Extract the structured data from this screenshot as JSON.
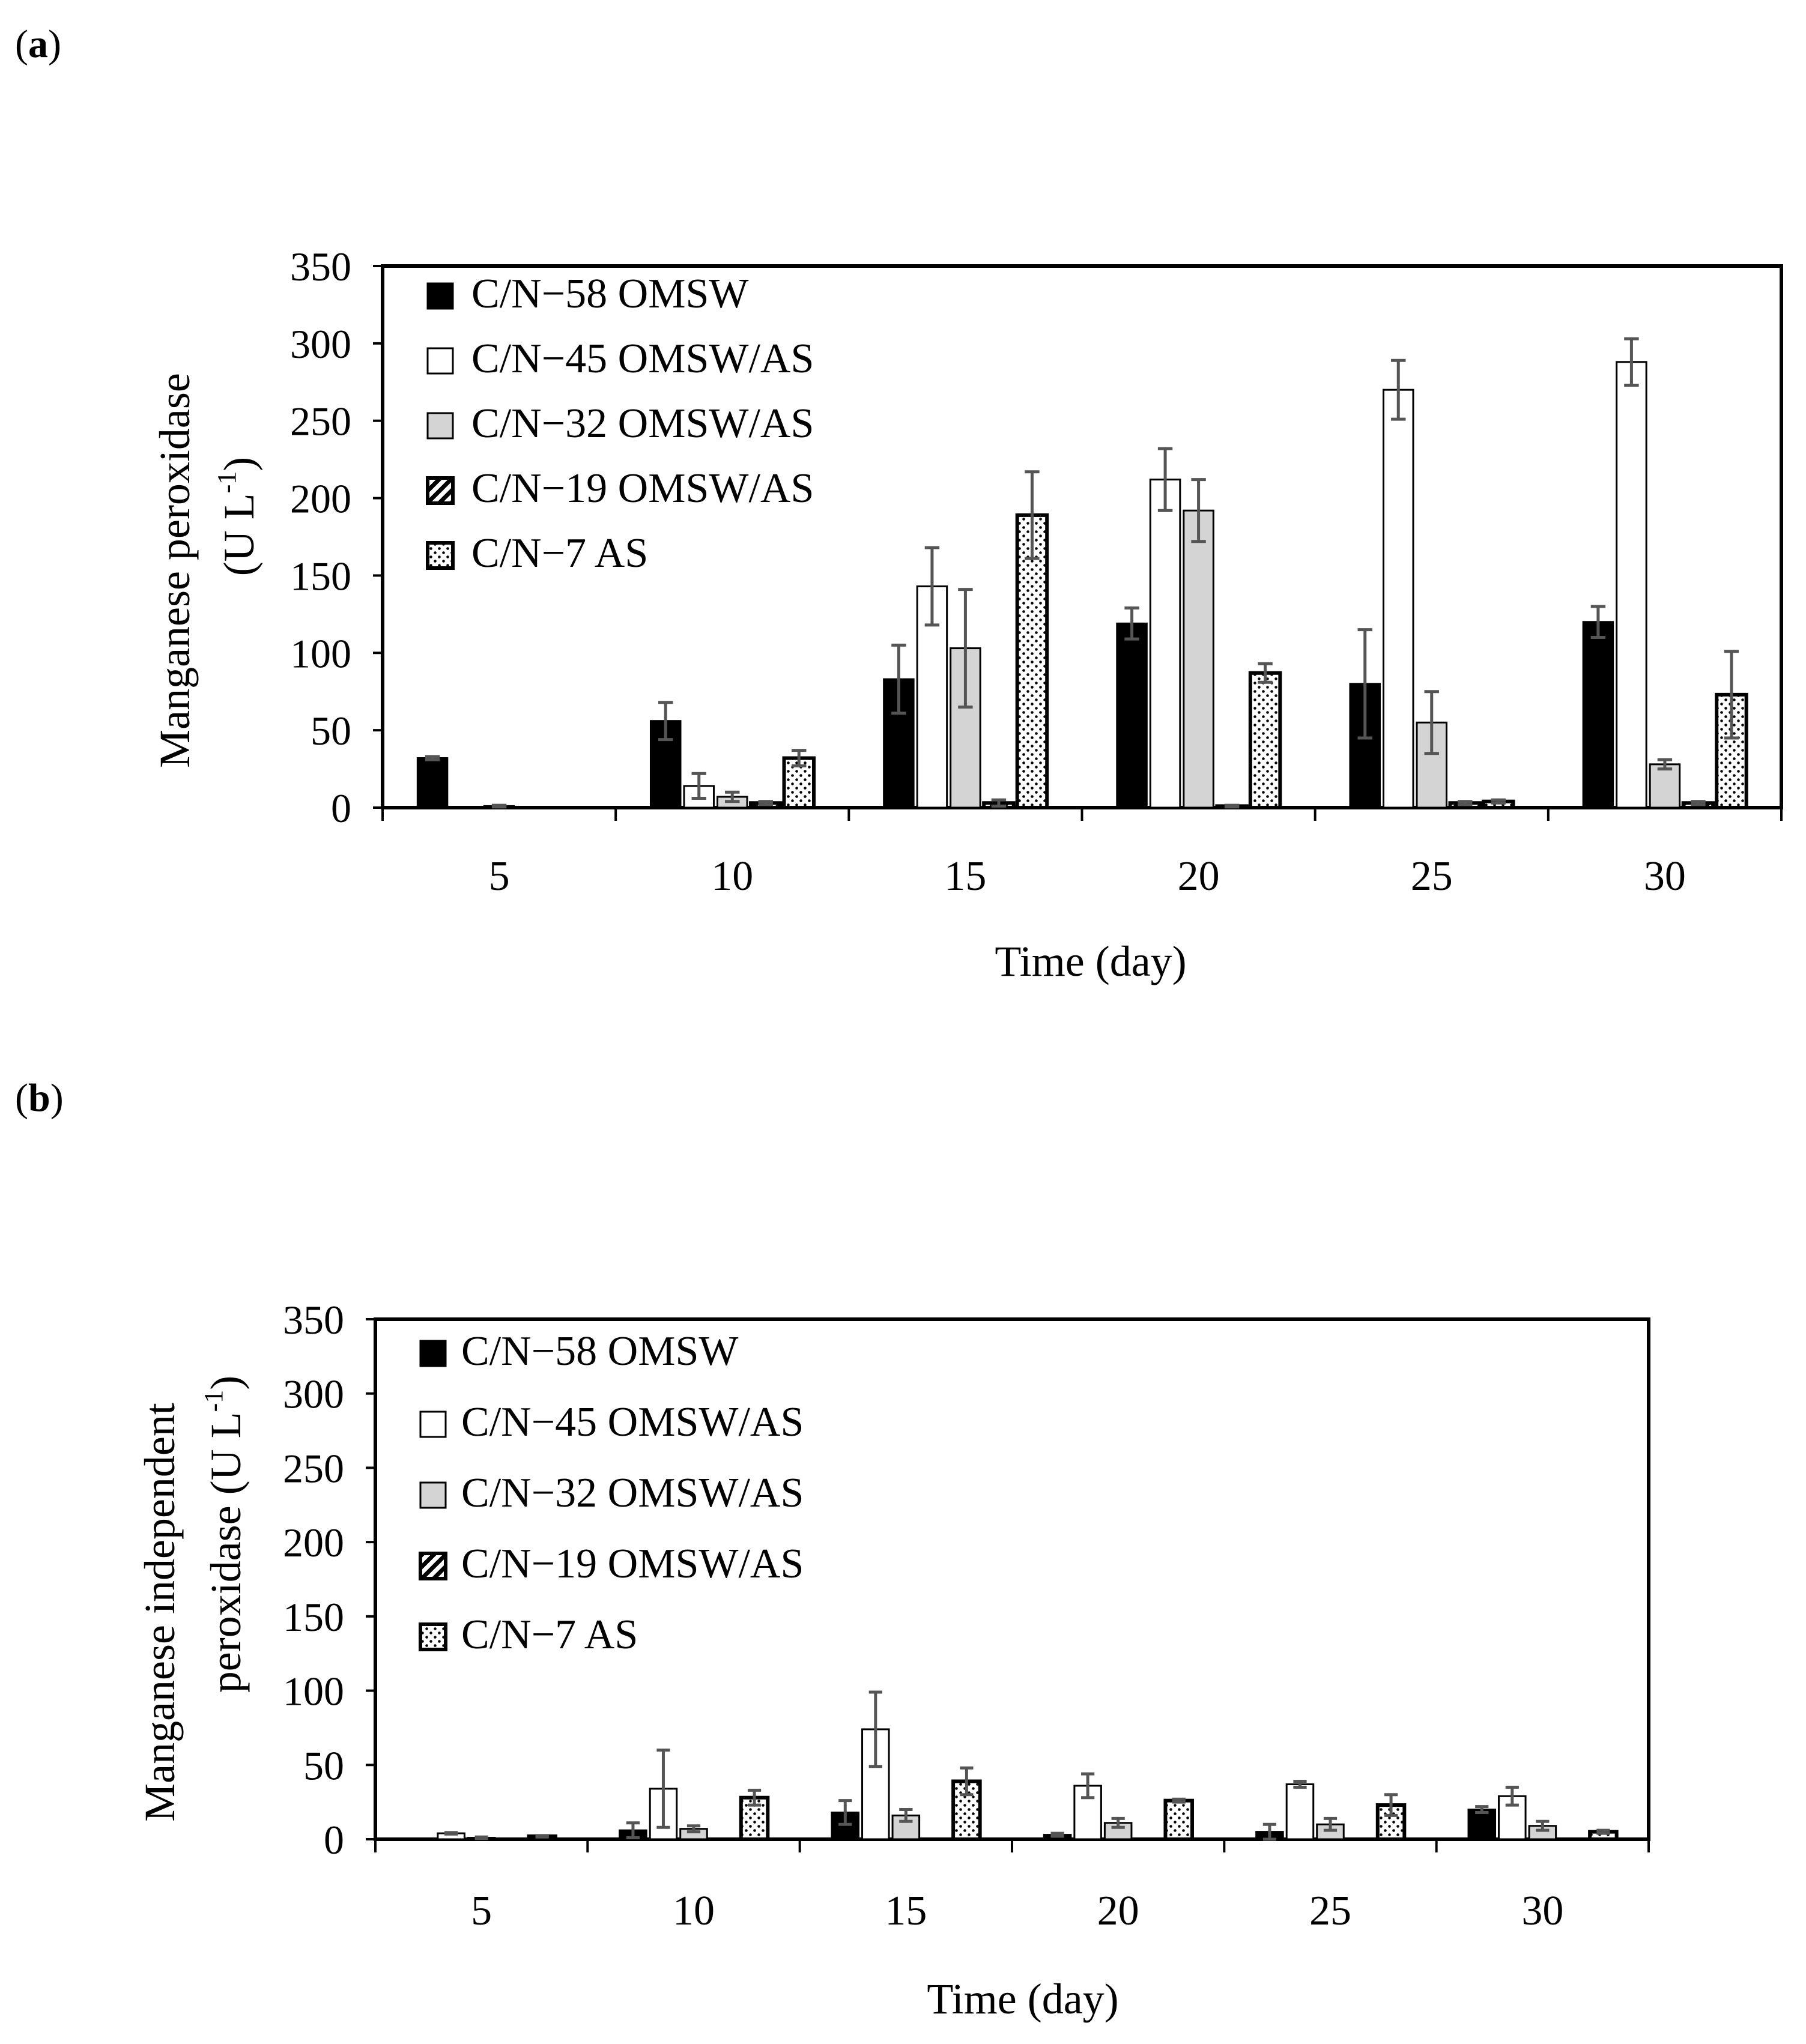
{
  "panels": [
    {
      "label_open": "(",
      "label_letter": "a",
      "label_close": ")",
      "ylabel_lines": [
        "Manganese peroxidase",
        "(U L",
        "-1",
        ")"
      ],
      "xlabel": "Time (day)"
    },
    {
      "label_open": "(",
      "label_letter": "b",
      "label_close": ")",
      "ylabel_lines": [
        "Manganese independent",
        "peroxidase (U L",
        "-1",
        ")"
      ],
      "xlabel": "Time (day)"
    }
  ],
  "chart_data": [
    {
      "type": "bar",
      "title": "",
      "xlabel": "Time (day)",
      "ylabel": "Manganese peroxidase (U L-1)",
      "ylim": [
        0,
        350
      ],
      "yticks": [
        0,
        50,
        100,
        150,
        200,
        250,
        300,
        350
      ],
      "categories": [
        "5",
        "10",
        "15",
        "20",
        "25",
        "30"
      ],
      "series": [
        {
          "name": "C/N−58 OMSW",
          "pattern": "black",
          "values": [
            32,
            56,
            83,
            119,
            80,
            120
          ],
          "errors": [
            1,
            12,
            22,
            10,
            35,
            10
          ]
        },
        {
          "name": "C/N−45 OMSW/AS",
          "pattern": "white",
          "values": [
            0,
            14,
            143,
            212,
            270,
            288
          ],
          "errors": [
            0,
            8,
            25,
            20,
            19,
            15
          ]
        },
        {
          "name": "C/N−32 OMSW/AS",
          "pattern": "gray",
          "values": [
            1,
            7,
            103,
            192,
            55,
            28
          ],
          "errors": [
            0.5,
            3,
            38,
            20,
            20,
            3
          ]
        },
        {
          "name": "C/N−19 OMSW/AS",
          "pattern": "hatch",
          "values": [
            0,
            3,
            3,
            1,
            3,
            3
          ],
          "errors": [
            0,
            1,
            2,
            0.5,
            1,
            1
          ]
        },
        {
          "name": "C/N−7 AS",
          "pattern": "dots",
          "values": [
            0,
            32,
            189,
            87,
            4,
            73
          ],
          "errors": [
            0,
            5,
            28,
            6,
            1,
            28
          ]
        }
      ],
      "legend": "top-left"
    },
    {
      "type": "bar",
      "title": "",
      "xlabel": "Time (day)",
      "ylabel": "Manganese independent peroxidase (U L-1)",
      "ylim": [
        0,
        350
      ],
      "yticks": [
        0,
        50,
        100,
        150,
        200,
        250,
        300,
        350
      ],
      "categories": [
        "5",
        "10",
        "15",
        "20",
        "25",
        "30"
      ],
      "series": [
        {
          "name": "C/N−58 OMSW",
          "pattern": "black",
          "values": [
            0,
            6,
            18,
            3,
            5,
            20
          ],
          "errors": [
            0,
            5,
            8,
            1,
            5,
            2
          ]
        },
        {
          "name": "C/N−45 OMSW/AS",
          "pattern": "white",
          "values": [
            4,
            34,
            74,
            36,
            37,
            29
          ],
          "errors": [
            0.5,
            26,
            25,
            8,
            2,
            6
          ]
        },
        {
          "name": "C/N−32 OMSW/AS",
          "pattern": "gray",
          "values": [
            1,
            7,
            16,
            11,
            10,
            9
          ],
          "errors": [
            0.5,
            2,
            4,
            3,
            4,
            3
          ]
        },
        {
          "name": "C/N−19 OMSW/AS",
          "pattern": "hatch",
          "values": [
            0,
            0,
            0,
            0,
            0,
            0
          ],
          "errors": [
            0,
            0,
            0,
            0,
            0,
            0
          ]
        },
        {
          "name": "C/N−7 AS",
          "pattern": "dots",
          "values": [
            2,
            28,
            39,
            26,
            23,
            5
          ],
          "errors": [
            0.5,
            5,
            9,
            1,
            7,
            1
          ]
        }
      ],
      "legend": "top-left"
    }
  ]
}
